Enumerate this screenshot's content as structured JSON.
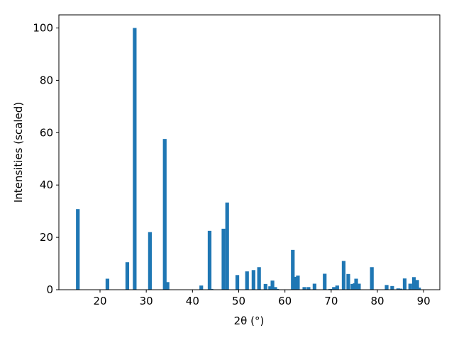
{
  "chart_data": {
    "type": "bar",
    "xlabel": "2θ (°)",
    "ylabel": "Intensities (scaled)",
    "color": "#1f77b4",
    "x": [
      15.2,
      21.6,
      25.9,
      27.5,
      30.8,
      34.0,
      34.6,
      41.9,
      43.7,
      44.1,
      46.7,
      47.5,
      49.7,
      51.8,
      53.2,
      54.4,
      55.8,
      56.8,
      57.3,
      57.9,
      58.3,
      61.7,
      62.3,
      62.8,
      64.2,
      65.1,
      66.4,
      68.6,
      69.8,
      70.6,
      71.3,
      72.7,
      73.7,
      74.6,
      75.1,
      75.4,
      76.0,
      78.8,
      82.0,
      83.2,
      84.5,
      85.0,
      85.9,
      87.1,
      87.9,
      88.6,
      89.0
    ],
    "values": [
      30.8,
      4.2,
      10.5,
      100,
      22,
      57.6,
      2.9,
      1.6,
      22.5,
      0.3,
      23.3,
      33.3,
      5.6,
      7,
      7.5,
      8.6,
      2.2,
      1.3,
      3.5,
      1,
      0.3,
      15.2,
      4.9,
      5.4,
      1,
      1,
      2.3,
      6.1,
      0.3,
      1,
      1.6,
      11,
      6,
      2.2,
      2.5,
      4.2,
      2.3,
      8.6,
      1.8,
      1.4,
      0.5,
      0.4,
      4.3,
      2.3,
      4.8,
      3.7,
      0.8
    ],
    "xlim": [
      11.1,
      93.5
    ],
    "xticks": [
      20,
      30,
      40,
      50,
      60,
      70,
      80,
      90
    ],
    "ylim": [
      0,
      105
    ],
    "yticks": [
      0,
      20,
      40,
      60,
      80,
      100
    ],
    "grid": false
  }
}
